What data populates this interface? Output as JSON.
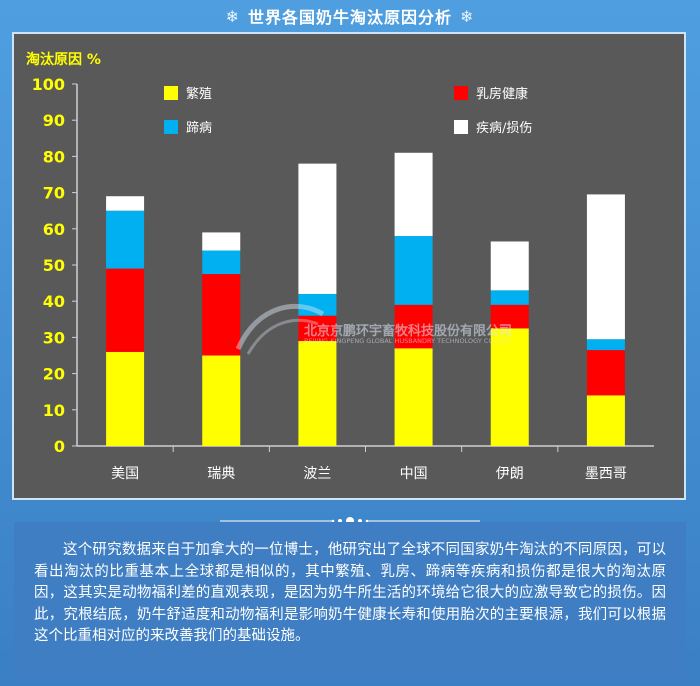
{
  "title": "世界各国奶牛淘汰原因分析",
  "title_icon": "snowflake-icon",
  "colors": {
    "background": "#4a95d9",
    "chart_background": "#595959",
    "axis_text": "#ffff00",
    "panel": "#3f7ec2"
  },
  "watermark": {
    "cn": "北京京鹏环宇畜牧科技股份有限公司",
    "en": "BEIJING KINGPENG GLOBAL HUSBANDRY TECHNOLOGY CO.,LTD."
  },
  "chart_data": {
    "type": "bar",
    "stacked": true,
    "ylabel": "淘汰原因 %",
    "ylim": [
      0,
      100
    ],
    "yticks": [
      0,
      10,
      20,
      30,
      40,
      50,
      60,
      70,
      80,
      90,
      100
    ],
    "categories": [
      "美国",
      "瑞典",
      "波兰",
      "中国",
      "伊朗",
      "墨西哥"
    ],
    "legend_position": "top",
    "series": [
      {
        "name": "繁殖",
        "color": "#ffff00",
        "values": [
          26,
          25,
          29,
          27,
          32.5,
          14
        ]
      },
      {
        "name": "乳房健康",
        "color": "#ff0000",
        "values": [
          23,
          22.5,
          7,
          12,
          6.5,
          12.5
        ]
      },
      {
        "name": "蹄病",
        "color": "#00b0f0",
        "values": [
          16,
          6.5,
          6,
          19,
          4,
          3
        ]
      },
      {
        "name": "疾病/损伤",
        "color": "#ffffff",
        "values": [
          4,
          5,
          36,
          23,
          13.5,
          40
        ]
      }
    ]
  },
  "description": "这个研究数据来自于加拿大的一位博士，他研究出了全球不同国家奶牛淘汰的不同原因，可以看出淘汰的比重基本上全球都是相似的，其中繁殖、乳房、蹄病等疾病和损伤都是很大的淘汰原因，这其实是动物福利差的直观表现，是因为奶牛所生活的环境给它很大的应激导致它的损伤。因此，究根结底，奶牛舒适度和动物福利是影响奶牛健康长寿和使用胎次的主要根源，我们可以根据这个比重相对应的来改善我们的基础设施。"
}
